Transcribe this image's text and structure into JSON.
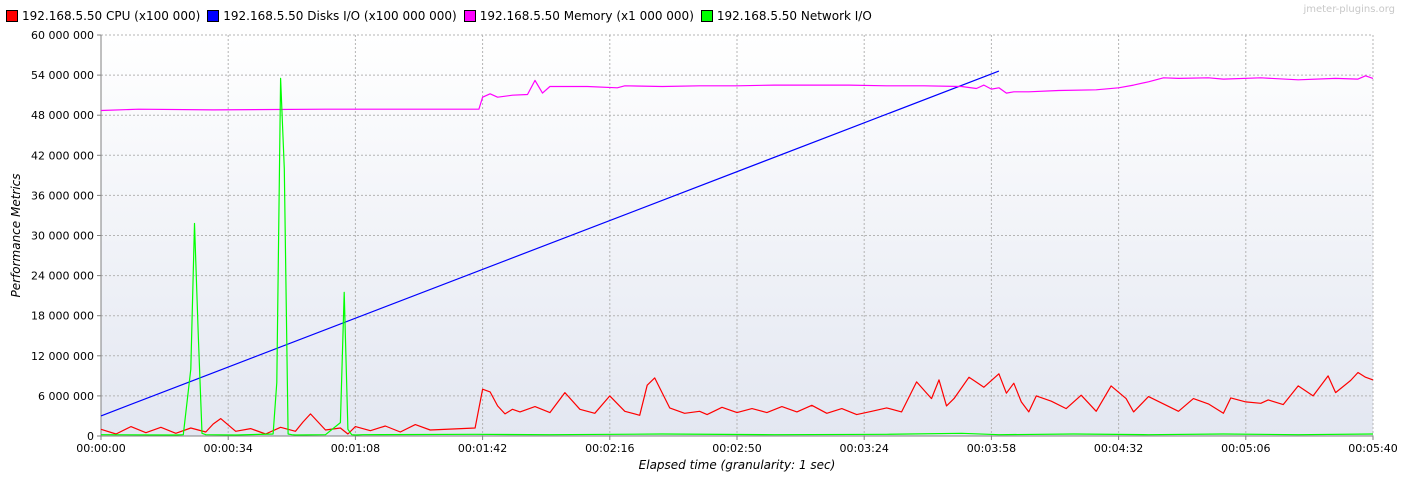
{
  "watermark": "jmeter-plugins.org",
  "chart_data": {
    "type": "line",
    "ylabel": "Performance Metrics",
    "xlabel": "Elapsed time (granularity: 1 sec)",
    "ylim": [
      0,
      60000000
    ],
    "xlim": [
      0,
      340
    ],
    "y_ticks": [
      0,
      6000000,
      12000000,
      18000000,
      24000000,
      30000000,
      36000000,
      42000000,
      48000000,
      54000000,
      60000000
    ],
    "y_tick_labels": [
      "0",
      "6 000 000",
      "12 000 000",
      "18 000 000",
      "24 000 000",
      "30 000 000",
      "36 000 000",
      "42 000 000",
      "48 000 000",
      "54 000 000",
      "60 000 000"
    ],
    "x_ticks": [
      0,
      34,
      68,
      102,
      136,
      170,
      204,
      238,
      272,
      306,
      340
    ],
    "x_tick_labels": [
      "00:00:00",
      "00:00:34",
      "00:01:08",
      "00:01:42",
      "00:02:16",
      "00:02:50",
      "00:03:24",
      "00:03:58",
      "00:04:32",
      "00:05:06",
      "00:05:40"
    ],
    "grid": true,
    "legend_position": "top-left",
    "series": [
      {
        "name": "192.168.5.50 CPU (x100 000)",
        "color": "#ff0000",
        "x": [
          0,
          4,
          8,
          12,
          16,
          20,
          24,
          28,
          30,
          32,
          36,
          40,
          44,
          48,
          52,
          54,
          56,
          60,
          64,
          66,
          68,
          72,
          76,
          80,
          84,
          88,
          100,
          102,
          104,
          106,
          108,
          110,
          112,
          116,
          120,
          124,
          128,
          132,
          136,
          140,
          144,
          146,
          148,
          152,
          156,
          160,
          162,
          166,
          170,
          174,
          178,
          182,
          186,
          190,
          194,
          198,
          202,
          206,
          210,
          214,
          218,
          222,
          224,
          226,
          228,
          232,
          236,
          240,
          242,
          244,
          246,
          248,
          250,
          254,
          258,
          262,
          266,
          270,
          274,
          276,
          280,
          284,
          288,
          292,
          296,
          300,
          302,
          306,
          310,
          312,
          316,
          320,
          324,
          328,
          330,
          334,
          336,
          338,
          340
        ],
        "y": [
          1000000,
          300000,
          1400000,
          500000,
          1300000,
          400000,
          1200000,
          600000,
          1800000,
          2600000,
          700000,
          1100000,
          300000,
          1300000,
          700000,
          2100000,
          3300000,
          900000,
          1200000,
          300000,
          1400000,
          800000,
          1500000,
          600000,
          1700000,
          900000,
          1200000,
          7000000,
          6600000,
          4500000,
          3300000,
          4000000,
          3600000,
          4400000,
          3500000,
          6500000,
          4000000,
          3400000,
          6000000,
          3700000,
          3100000,
          7600000,
          8700000,
          4200000,
          3400000,
          3700000,
          3200000,
          4300000,
          3500000,
          4100000,
          3500000,
          4400000,
          3600000,
          4600000,
          3400000,
          4100000,
          3200000,
          3700000,
          4200000,
          3600000,
          8100000,
          5600000,
          8400000,
          4500000,
          5600000,
          8800000,
          7300000,
          9300000,
          6400000,
          7900000,
          5100000,
          3600000,
          6000000,
          5200000,
          4100000,
          6100000,
          3700000,
          7500000,
          5600000,
          3600000,
          5900000,
          4800000,
          3700000,
          5600000,
          4800000,
          3400000,
          5700000,
          5100000,
          4900000,
          5400000,
          4700000,
          7500000,
          6000000,
          9000000,
          6500000,
          8300000,
          9500000,
          8800000,
          8400000
        ]
      },
      {
        "name": "192.168.5.50 Disks I/O (x100 000 000)",
        "color": "#0000ff",
        "x": [
          0,
          240
        ],
        "y": [
          3000000,
          54600000
        ]
      },
      {
        "name": "192.168.5.50 Memory (x1 000 000)",
        "color": "#ff00ff",
        "x": [
          0,
          10,
          30,
          60,
          90,
          101,
          102,
          104,
          106,
          110,
          114,
          116,
          118,
          120,
          122,
          130,
          138,
          140,
          150,
          160,
          170,
          180,
          190,
          200,
          210,
          220,
          230,
          234,
          236,
          238,
          240,
          242,
          244,
          248,
          256,
          266,
          272,
          276,
          280,
          284,
          288,
          296,
          300,
          310,
          320,
          330,
          336,
          338,
          340
        ],
        "y": [
          48700000,
          48900000,
          48800000,
          48900000,
          48900000,
          48900000,
          50700000,
          51200000,
          50700000,
          51000000,
          51100000,
          53200000,
          51300000,
          52300000,
          52300000,
          52300000,
          52100000,
          52400000,
          52300000,
          52400000,
          52400000,
          52500000,
          52500000,
          52500000,
          52400000,
          52400000,
          52300000,
          52000000,
          52500000,
          51900000,
          52100000,
          51300000,
          51500000,
          51500000,
          51700000,
          51800000,
          52100000,
          52500000,
          53000000,
          53600000,
          53500000,
          53600000,
          53400000,
          53600000,
          53300000,
          53500000,
          53400000,
          53900000,
          53500000
        ]
      },
      {
        "name": "192.168.5.50 Network I/O",
        "color": "#00ff00",
        "x": [
          0,
          20,
          22,
          24,
          25,
          26,
          27,
          28,
          36,
          46,
          47,
          48,
          49,
          50,
          51,
          52,
          60,
          64,
          65,
          66,
          67,
          68,
          70,
          100,
          120,
          150,
          180,
          210,
          230,
          240,
          260,
          280,
          300,
          320,
          340
        ],
        "y": [
          200000,
          150000,
          200000,
          10000000,
          31800000,
          15000000,
          400000,
          200000,
          150000,
          300000,
          8000000,
          53500000,
          40000000,
          300000,
          200000,
          150000,
          200000,
          2000000,
          21500000,
          1000000,
          200000,
          150000,
          200000,
          250000,
          200000,
          300000,
          200000,
          250000,
          400000,
          200000,
          300000,
          200000,
          300000,
          200000,
          300000
        ]
      }
    ]
  }
}
